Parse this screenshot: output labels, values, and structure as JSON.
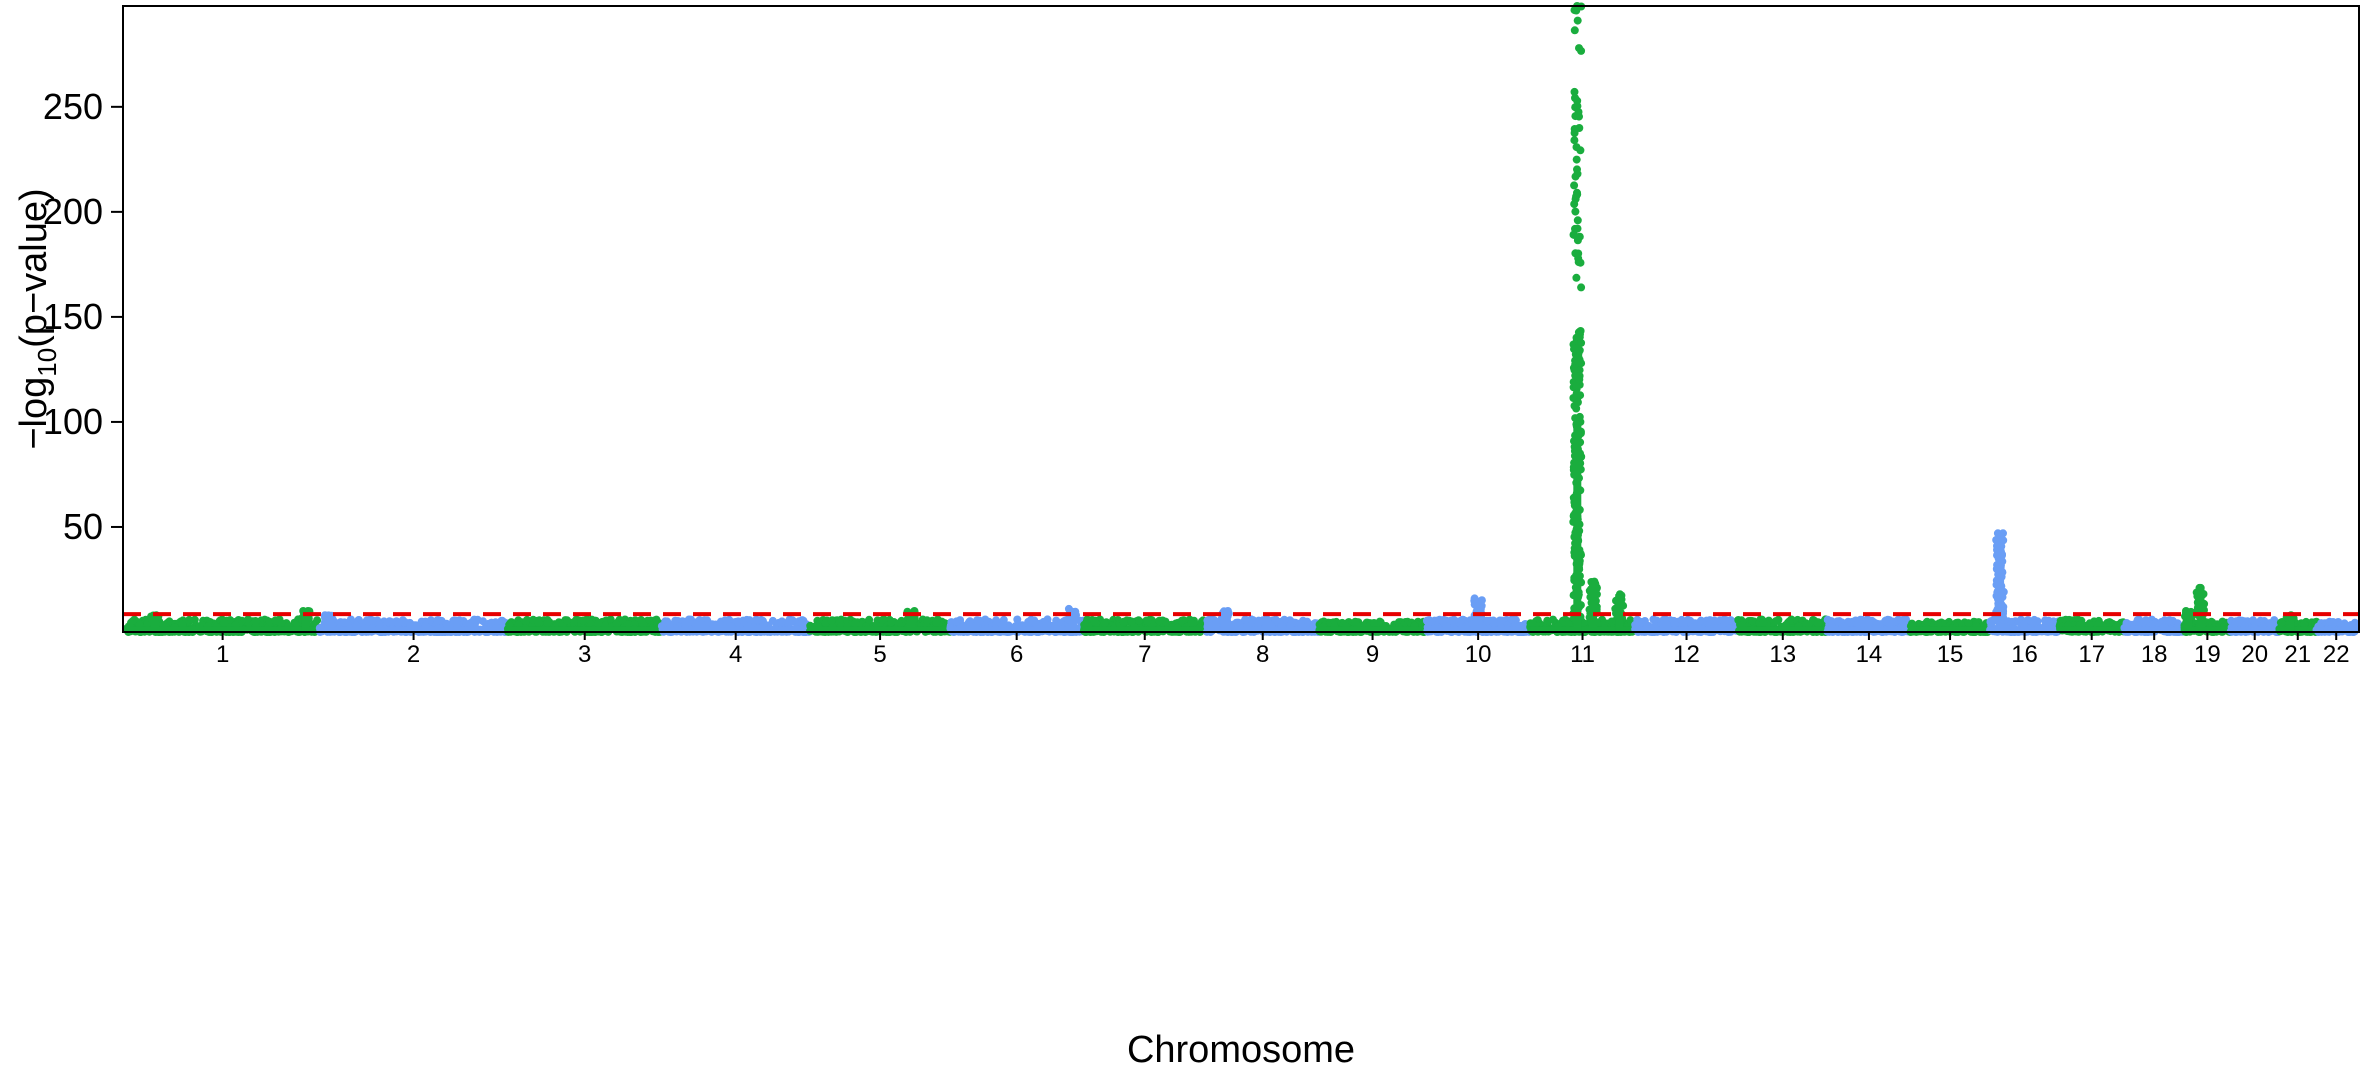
{
  "chart_data": {
    "type": "scatter",
    "title": "",
    "xlabel": "Chromosome",
    "ylabel": "−log10(p−value)",
    "ylabel_parts": {
      "prefix": "−log",
      "sub": "10",
      "suffix": "(p−value)"
    },
    "ylim": [
      0,
      298
    ],
    "yticks": [
      50,
      100,
      150,
      200,
      250
    ],
    "colors": {
      "odd_chromosome": "#1aad3e",
      "even_chromosome": "#6a9ef5",
      "threshold": "#e60000"
    },
    "threshold": 8.5,
    "grid": false,
    "legend": "none",
    "chromosomes": [
      {
        "label": "1",
        "length": 249,
        "base_max": 6,
        "peaks": [
          {
            "pos": 0.15,
            "height": 8
          },
          {
            "pos": 0.93,
            "height": 10
          }
        ]
      },
      {
        "label": "2",
        "length": 243,
        "base_max": 6,
        "peaks": [
          {
            "pos": 0.05,
            "height": 8
          }
        ]
      },
      {
        "label": "3",
        "length": 198,
        "base_max": 6,
        "peaks": []
      },
      {
        "label": "4",
        "length": 191,
        "base_max": 6,
        "peaks": []
      },
      {
        "label": "5",
        "length": 181,
        "base_max": 6,
        "peaks": [
          {
            "pos": 0.72,
            "height": 10
          }
        ]
      },
      {
        "label": "6",
        "length": 171,
        "base_max": 6,
        "peaks": [
          {
            "pos": 0.92,
            "height": 11
          }
        ]
      },
      {
        "label": "7",
        "length": 159,
        "base_max": 6,
        "peaks": []
      },
      {
        "label": "8",
        "length": 145,
        "base_max": 6,
        "peaks": [
          {
            "pos": 0.17,
            "height": 10
          }
        ]
      },
      {
        "label": "9",
        "length": 138,
        "base_max": 5,
        "peaks": []
      },
      {
        "label": "10",
        "length": 134,
        "base_max": 6,
        "peaks": [
          {
            "pos": 0.5,
            "height": 16
          }
        ]
      },
      {
        "label": "11",
        "length": 135,
        "base_max": 6,
        "peaks": [
          {
            "pos": 0.45,
            "height": 298
          },
          {
            "pos": 0.85,
            "height": 18
          },
          {
            "pos": 0.6,
            "height": 24
          }
        ]
      },
      {
        "label": "12",
        "length": 133,
        "base_max": 6,
        "peaks": []
      },
      {
        "label": "13",
        "length": 115,
        "base_max": 6,
        "peaks": []
      },
      {
        "label": "14",
        "length": 107,
        "base_max": 6,
        "peaks": []
      },
      {
        "label": "15",
        "length": 102,
        "base_max": 5,
        "peaks": []
      },
      {
        "label": "16",
        "length": 90,
        "base_max": 6,
        "peaks": [
          {
            "pos": 0.15,
            "height": 47
          }
        ]
      },
      {
        "label": "17",
        "length": 83,
        "base_max": 6,
        "peaks": []
      },
      {
        "label": "18",
        "length": 78,
        "base_max": 6,
        "peaks": []
      },
      {
        "label": "19",
        "length": 59,
        "base_max": 5,
        "peaks": [
          {
            "pos": 0.35,
            "height": 21
          },
          {
            "pos": 0.08,
            "height": 10
          }
        ]
      },
      {
        "label": "20",
        "length": 63,
        "base_max": 6,
        "peaks": []
      },
      {
        "label": "21",
        "length": 48,
        "base_max": 5,
        "peaks": [
          {
            "pos": 0.3,
            "height": 8
          }
        ]
      },
      {
        "label": "22",
        "length": 51,
        "base_max": 5,
        "peaks": []
      }
    ]
  }
}
